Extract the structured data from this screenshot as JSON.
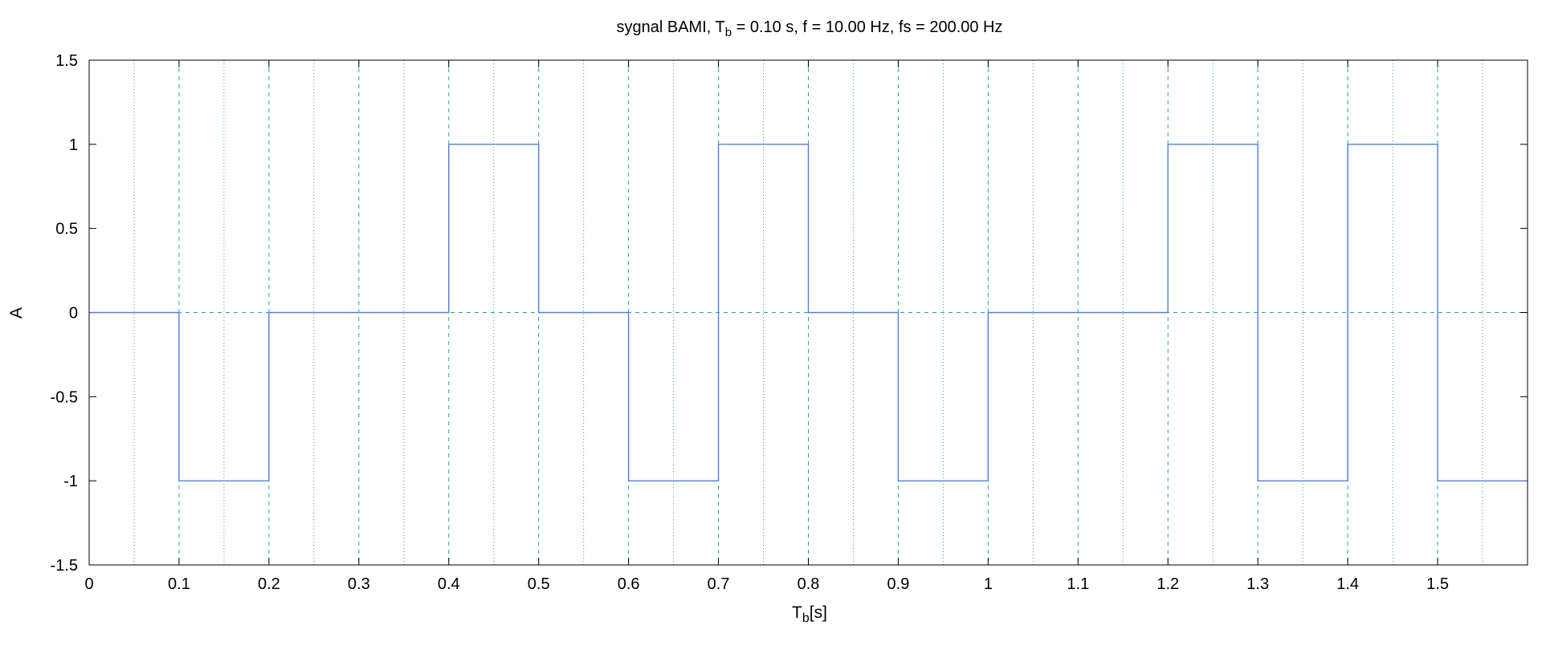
{
  "chart_data": {
    "type": "line",
    "title": {
      "prefix": "sygnal BAMI, T",
      "sub": "b",
      "suffix": " = 0.10 s, f = 10.00 Hz, fs = 200.00 Hz"
    },
    "xlabel": {
      "main": "T",
      "sub": "b",
      "suffix": "[s]"
    },
    "ylabel": "A",
    "xlim": [
      0,
      1.6
    ],
    "ylim": [
      -1.5,
      1.5
    ],
    "x_ticks": [
      0,
      0.1,
      0.2,
      0.3,
      0.4,
      0.5,
      0.6,
      0.7,
      0.8,
      0.9,
      1.0,
      1.1,
      1.2,
      1.3,
      1.4,
      1.5
    ],
    "x_tick_labels": [
      "0",
      "0.1",
      "0.2",
      "0.3",
      "0.4",
      "0.5",
      "0.6",
      "0.7",
      "0.8",
      "0.9",
      "1",
      "1.1",
      "1.2",
      "1.3",
      "1.4",
      "1.5"
    ],
    "x_minor_ticks": [
      0.05,
      0.15,
      0.25,
      0.35,
      0.45,
      0.55,
      0.65,
      0.75,
      0.85,
      0.95,
      1.05,
      1.15,
      1.25,
      1.35,
      1.45,
      1.55
    ],
    "y_ticks": [
      -1.5,
      -1,
      -0.5,
      0,
      0.5,
      1,
      1.5
    ],
    "y_tick_labels": [
      "-1.5",
      "-1",
      "-0.5",
      "0",
      "0.5",
      "1",
      "1.5"
    ],
    "grid": true,
    "series": [
      {
        "style": "step",
        "bit_period": 0.1,
        "values": [
          0,
          -1,
          0,
          0,
          1,
          0,
          -1,
          1,
          0,
          -1,
          0,
          0,
          1,
          -1,
          1,
          -1
        ]
      }
    ],
    "colors": {
      "signal": "#4f7fe6",
      "grid": "#1aa89c",
      "axes": "#000000"
    }
  }
}
